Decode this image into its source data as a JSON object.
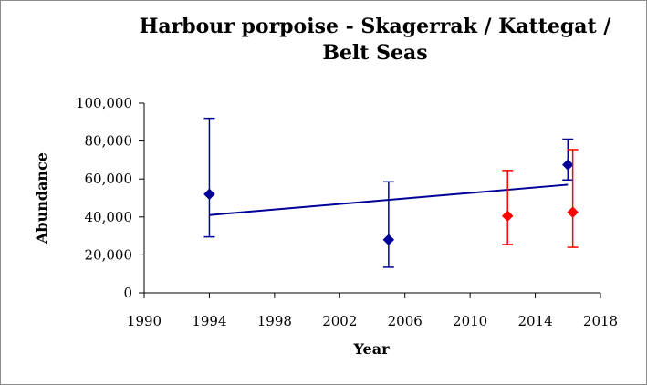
{
  "chart_data": {
    "type": "scatter",
    "title": "Harbour porpoise - Skagerrak / Kattegat / Belt Seas",
    "xlabel": "Year",
    "ylabel": "Abundance",
    "xlim": [
      1990,
      2018
    ],
    "ylim": [
      0,
      100000
    ],
    "x_ticks": [
      1990,
      1994,
      1998,
      2002,
      2006,
      2010,
      2014,
      2018
    ],
    "x_tick_labels": [
      "1990",
      "1994",
      "1998",
      "2002",
      "2006",
      "2010",
      "2014",
      "2018"
    ],
    "y_ticks": [
      0,
      20000,
      40000,
      60000,
      80000,
      100000
    ],
    "y_tick_labels": [
      "0",
      "20,000",
      "40,000",
      "60,000",
      "80,000",
      "100,000"
    ],
    "grid": false,
    "legend": "none",
    "series": [
      {
        "color": "#000099",
        "marker": "diamond",
        "points": [
          {
            "x": 1994,
            "y": 52000,
            "lower": 29500,
            "upper": 92000
          },
          {
            "x": 2005,
            "y": 28000,
            "lower": 13500,
            "upper": 58500
          },
          {
            "x": 2016,
            "y": 67500,
            "lower": 59500,
            "upper": 81000
          }
        ]
      },
      {
        "color": "#ff0000",
        "marker": "diamond",
        "points": [
          {
            "x": 2012.3,
            "y": 40500,
            "lower": 25500,
            "upper": 64500
          },
          {
            "x": 2016.3,
            "y": 42500,
            "lower": 24000,
            "upper": 75500
          }
        ]
      }
    ],
    "trendline": {
      "color": "#000099",
      "x": [
        1994,
        2016
      ],
      "y": [
        41000,
        57000
      ]
    }
  }
}
